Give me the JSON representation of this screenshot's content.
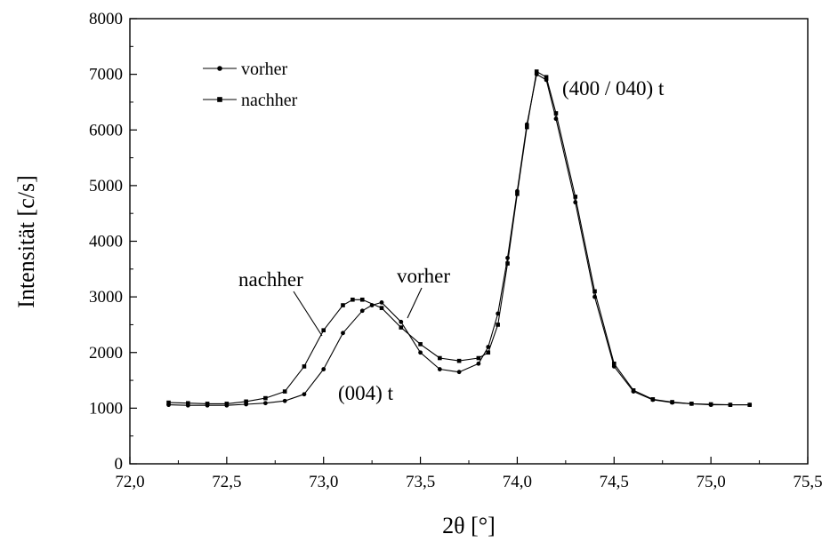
{
  "chart_data": {
    "type": "line",
    "title": "",
    "xlabel": "2θ [°]",
    "ylabel": "Intensität [c/s]",
    "xlim": [
      72.0,
      75.5
    ],
    "ylim": [
      0,
      8000
    ],
    "xticks": [
      72.0,
      72.5,
      73.0,
      73.5,
      74.0,
      74.5,
      75.0,
      75.5
    ],
    "xtick_labels": [
      "72,0",
      "72,5",
      "73,0",
      "73,5",
      "74,0",
      "74,5",
      "75,0",
      "75,5"
    ],
    "yticks": [
      0,
      1000,
      2000,
      3000,
      4000,
      5000,
      6000,
      7000,
      8000
    ],
    "ytick_labels": [
      "0",
      "1000",
      "2000",
      "3000",
      "4000",
      "5000",
      "6000",
      "7000",
      "8000"
    ],
    "grid": false,
    "legend_position": "top-left",
    "series": [
      {
        "name": "vorher",
        "marker": "circle",
        "x": [
          72.2,
          72.3,
          72.4,
          72.5,
          72.6,
          72.7,
          72.8,
          72.9,
          73.0,
          73.1,
          73.2,
          73.25,
          73.3,
          73.4,
          73.5,
          73.6,
          73.7,
          73.8,
          73.85,
          73.9,
          73.95,
          74.0,
          74.05,
          74.1,
          74.15,
          74.2,
          74.3,
          74.4,
          74.5,
          74.6,
          74.7,
          74.8,
          74.9,
          75.0,
          75.1,
          75.2
        ],
        "y": [
          1060,
          1050,
          1050,
          1050,
          1070,
          1090,
          1130,
          1250,
          1700,
          2350,
          2750,
          2850,
          2900,
          2550,
          2000,
          1700,
          1650,
          1800,
          2100,
          2700,
          3700,
          4900,
          6100,
          7000,
          6900,
          6200,
          4700,
          3000,
          1750,
          1300,
          1150,
          1100,
          1080,
          1060,
          1060,
          1060
        ]
      },
      {
        "name": "nachher",
        "marker": "square",
        "x": [
          72.2,
          72.3,
          72.4,
          72.5,
          72.6,
          72.7,
          72.8,
          72.9,
          73.0,
          73.1,
          73.15,
          73.2,
          73.3,
          73.4,
          73.5,
          73.6,
          73.7,
          73.8,
          73.85,
          73.9,
          73.95,
          74.0,
          74.05,
          74.1,
          74.15,
          74.2,
          74.3,
          74.4,
          74.5,
          74.6,
          74.7,
          74.8,
          74.9,
          75.0,
          75.1,
          75.2
        ],
        "y": [
          1100,
          1090,
          1080,
          1080,
          1120,
          1180,
          1300,
          1750,
          2400,
          2850,
          2950,
          2950,
          2800,
          2450,
          2150,
          1900,
          1850,
          1900,
          2000,
          2500,
          3600,
          4850,
          6050,
          7050,
          6950,
          6300,
          4800,
          3100,
          1800,
          1320,
          1160,
          1110,
          1080,
          1070,
          1060,
          1060
        ]
      }
    ],
    "annotations": [
      {
        "text": "(400 / 040) t"
      },
      {
        "text": "(004) t"
      },
      {
        "text": "nachher"
      },
      {
        "text": "vorher"
      }
    ]
  }
}
